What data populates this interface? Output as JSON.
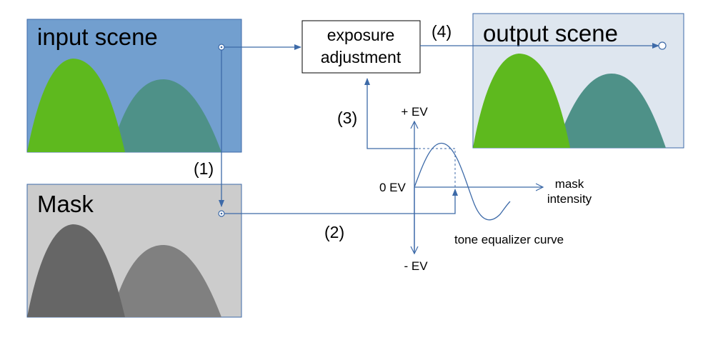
{
  "panels": {
    "input": {
      "title": "input scene",
      "bg": "#729fcf",
      "hill_left": "#5eb91e",
      "hill_right": "#4e9188"
    },
    "mask": {
      "title": "Mask",
      "bg": "#cccccc",
      "hill_left": "#666666",
      "hill_right": "#808080"
    },
    "output": {
      "title": "output scene",
      "bg": "#dee6ef",
      "hill_left": "#5eb91e",
      "hill_right": "#4e9188"
    }
  },
  "process_box": {
    "line1": "exposure",
    "line2": "adjustment"
  },
  "steps": {
    "s1": "(1)",
    "s2": "(2)",
    "s3": "(3)",
    "s4": "(4)"
  },
  "curve": {
    "plus_ev": "+ EV",
    "zero_ev": "0 EV",
    "minus_ev": "- EV",
    "x_label_1": "mask",
    "x_label_2": "intensity",
    "caption": "tone equalizer curve"
  },
  "colors": {
    "connector": "#3d6aa8"
  }
}
